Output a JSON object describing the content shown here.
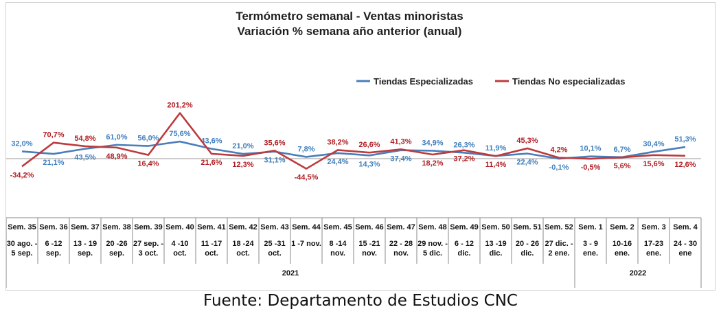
{
  "source": "Fuente: Departamento de Estudios CNC",
  "colors": {
    "especializadas": "#4a7ebb",
    "no_especializadas": "#be3a3d"
  },
  "chart_data": {
    "type": "line",
    "title": "Termómetro semanal - Ventas minoristas",
    "subtitle": "Variación % semana año anterior (anual)",
    "legend_position": "top-right",
    "grid": false,
    "categories": [
      {
        "week": "Sem. 35",
        "dates": [
          "30 ago. -",
          "5 sep."
        ]
      },
      {
        "week": "Sem. 36",
        "dates": [
          "6 -12",
          "sep."
        ]
      },
      {
        "week": "Sem. 37",
        "dates": [
          "13 - 19",
          "sep."
        ]
      },
      {
        "week": "Sem. 38",
        "dates": [
          "20 -26",
          "sep."
        ]
      },
      {
        "week": "Sem. 39",
        "dates": [
          "27 sep. -",
          "3 oct."
        ]
      },
      {
        "week": "Sem. 40",
        "dates": [
          "4 -10",
          "oct."
        ]
      },
      {
        "week": "Sem. 41",
        "dates": [
          "11 -17",
          "oct."
        ]
      },
      {
        "week": "Sem. 42",
        "dates": [
          "18 -24",
          "oct."
        ]
      },
      {
        "week": "Sem. 43",
        "dates": [
          "25 -31",
          "oct."
        ]
      },
      {
        "week": "Sem. 44",
        "dates": [
          "1 -7 nov."
        ]
      },
      {
        "week": "Sem. 45",
        "dates": [
          "8 -14",
          "nov."
        ]
      },
      {
        "week": "Sem. 46",
        "dates": [
          "15 -21",
          "nov."
        ]
      },
      {
        "week": "Sem. 47",
        "dates": [
          "22 - 28",
          "nov."
        ]
      },
      {
        "week": "Sem. 48",
        "dates": [
          "29 nov. -",
          "5 dic."
        ]
      },
      {
        "week": "Sem. 49",
        "dates": [
          "6 - 12",
          "dic."
        ]
      },
      {
        "week": "Sem. 50",
        "dates": [
          "13 -19",
          "dic."
        ]
      },
      {
        "week": "Sem. 51",
        "dates": [
          "20 - 26",
          "dic."
        ]
      },
      {
        "week": "Sem. 52",
        "dates": [
          "27 dic. -",
          "2 ene."
        ]
      },
      {
        "week": "Sem. 1",
        "dates": [
          "3 - 9",
          "ene."
        ]
      },
      {
        "week": "Sem. 2",
        "dates": [
          "10-16",
          "ene."
        ]
      },
      {
        "week": "Sem. 3",
        "dates": [
          "17-23",
          "ene."
        ]
      },
      {
        "week": "Sem. 4",
        "dates": [
          "24 - 30",
          "ene"
        ]
      }
    ],
    "year_groups": [
      {
        "label": "2021",
        "count": 18
      },
      {
        "label": "2022",
        "count": 4
      }
    ],
    "series": [
      {
        "name": "Tiendas Especializadas",
        "color": "#4a7ebb",
        "values": [
          32.0,
          21.1,
          43.5,
          61.0,
          56.0,
          75.6,
          43.6,
          21.0,
          31.1,
          7.8,
          24.4,
          14.3,
          37.4,
          34.9,
          26.3,
          11.9,
          22.4,
          -0.1,
          10.1,
          6.7,
          30.4,
          51.3
        ],
        "labels": [
          "32,0%",
          "21,1%",
          "43,5%",
          "61,0%",
          "56,0%",
          "75,6%",
          "43,6%",
          "21,0%",
          "31,1%",
          "7,8%",
          "24,4%",
          "14,3%",
          "37,4%",
          "34,9%",
          "26,3%",
          "11,9%",
          "22,4%",
          "-0,1%",
          "10,1%",
          "6,7%",
          "30,4%",
          "51,3%"
        ],
        "label_pos": [
          "above",
          "below",
          "below",
          "above",
          "above",
          "above",
          "above",
          "above",
          "below",
          "above",
          "below",
          "below",
          "below",
          "above",
          "above",
          "above",
          "below",
          "below",
          "above",
          "above",
          "above",
          "above"
        ]
      },
      {
        "name": "Tiendas No especializadas",
        "color": "#be3a3d",
        "values": [
          -34.2,
          70.7,
          54.8,
          48.9,
          16.4,
          201.2,
          21.6,
          12.3,
          35.6,
          -44.5,
          38.2,
          26.6,
          41.3,
          18.2,
          37.2,
          11.4,
          45.3,
          4.2,
          -0.5,
          5.6,
          15.6,
          12.6
        ],
        "labels": [
          "-34,2%",
          "70,7%",
          "54,8%",
          "48,9%",
          "16,4%",
          "201,2%",
          "21,6%",
          "12,3%",
          "35,6%",
          "-44,5%",
          "38,2%",
          "26,6%",
          "41,3%",
          "18,2%",
          "37,2%",
          "11,4%",
          "45,3%",
          "4,2%",
          "-0,5%",
          "5,6%",
          "15,6%",
          "12,6%"
        ],
        "label_pos": [
          "below",
          "above",
          "above",
          "below",
          "below",
          "above",
          "below",
          "below",
          "above",
          "below",
          "above",
          "above",
          "above",
          "below",
          "below",
          "below",
          "above",
          "above",
          "below",
          "below",
          "below",
          "below"
        ]
      }
    ]
  }
}
